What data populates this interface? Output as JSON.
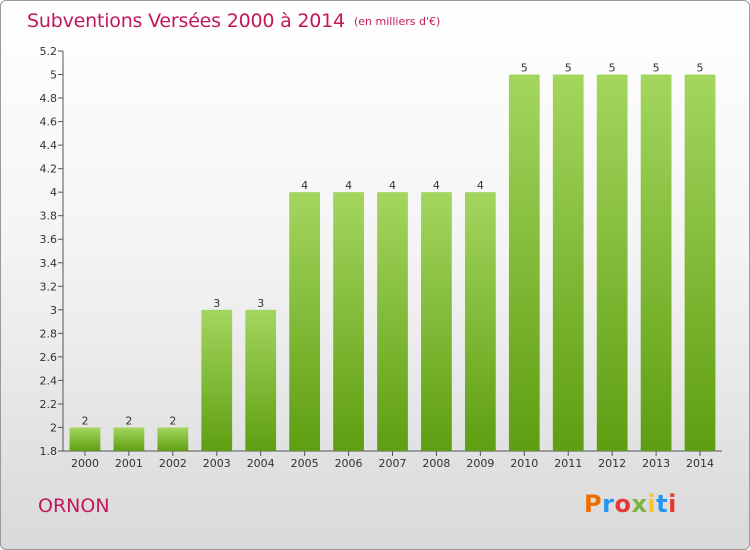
{
  "header": {
    "title": "Subventions Versées 2000 à 2014",
    "subtitle": "(en milliers d'€)"
  },
  "footer": {
    "place": "ORNON",
    "logo_text": "Proxiti",
    "logo_colors": [
      "#ef6c00",
      "#2196f3",
      "#e53935",
      "#7cb342",
      "#fbc02d",
      "#2196f3",
      "#e53935"
    ]
  },
  "colors": {
    "title": "#c2185b",
    "bar_light": "#a4d65e",
    "bar_dark": "#5e9e12"
  },
  "chart_data": {
    "type": "bar",
    "categories": [
      "2000",
      "2001",
      "2002",
      "2003",
      "2004",
      "2005",
      "2006",
      "2007",
      "2008",
      "2009",
      "2010",
      "2011",
      "2012",
      "2013",
      "2014"
    ],
    "values": [
      2,
      2,
      2,
      3,
      3,
      4,
      4,
      4,
      4,
      4,
      5,
      5,
      5,
      5,
      5
    ],
    "data_labels": [
      "2",
      "2",
      "2",
      "3",
      "3",
      "4",
      "4",
      "4",
      "4",
      "4",
      "5",
      "5",
      "5",
      "5",
      "5"
    ],
    "yticks": [
      "1.8",
      "2",
      "2.2",
      "2.4",
      "2.6",
      "2.8",
      "3",
      "3.2",
      "3.4",
      "3.6",
      "3.8",
      "4",
      "4.2",
      "4.4",
      "4.6",
      "4.8",
      "5",
      "5.2"
    ],
    "ylim": [
      1.8,
      5.2
    ],
    "grid": false
  }
}
